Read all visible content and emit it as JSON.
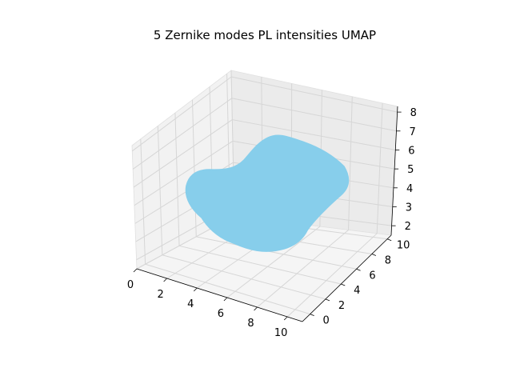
{
  "chart_data": {
    "type": "scatter",
    "projection": "3d",
    "title": "5 Zernike modes PL intensities UMAP",
    "xlabel": "",
    "ylabel": "",
    "zlabel": "",
    "xlim": [
      0,
      11
    ],
    "ylim": [
      -1,
      10.5
    ],
    "zlim": [
      1.5,
      8.3
    ],
    "x_ticks": [
      "0",
      "2",
      "4",
      "6",
      "8",
      "10"
    ],
    "y_ticks": [
      "0",
      "2",
      "4",
      "6",
      "8",
      "10"
    ],
    "z_ticks": [
      "2",
      "3",
      "4",
      "5",
      "6",
      "7",
      "8"
    ],
    "grid": true,
    "series": [
      {
        "color": "#87ceeb",
        "point_cloud_extent": {
          "x": [
            1,
            9.5
          ],
          "y": [
            0,
            10
          ],
          "z": [
            2.3,
            8
          ]
        }
      }
    ]
  }
}
